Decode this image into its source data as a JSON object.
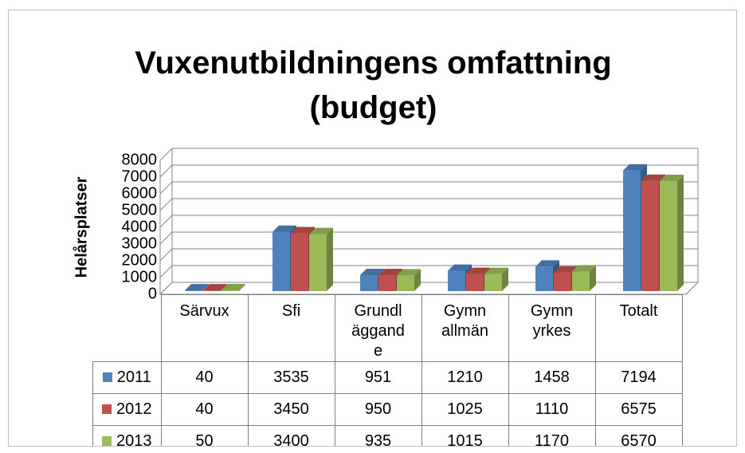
{
  "chart_data": {
    "type": "bar3d",
    "title": "Vuxenutbildningens omfattning (budget)",
    "y_label": "Helårsplatser",
    "categories": [
      "Särvux",
      "Sfi",
      "Grundläggande",
      "Gymn allmän",
      "Gymn yrkes",
      "Totalt"
    ],
    "series": [
      {
        "name": "2011",
        "color": "#4f81bd",
        "values": [
          40,
          3535,
          951,
          1210,
          1458,
          7194
        ]
      },
      {
        "name": "2012",
        "color": "#c0504d",
        "values": [
          40,
          3450,
          950,
          1025,
          1110,
          6575
        ]
      },
      {
        "name": "2013",
        "color": "#9bbb59",
        "values": [
          50,
          3400,
          935,
          1015,
          1170,
          6570
        ]
      }
    ],
    "ylim": [
      0,
      8000
    ],
    "yticks": [
      0,
      1000,
      2000,
      3000,
      4000,
      5000,
      6000,
      7000,
      8000
    ],
    "grid": true,
    "data_table": true
  }
}
